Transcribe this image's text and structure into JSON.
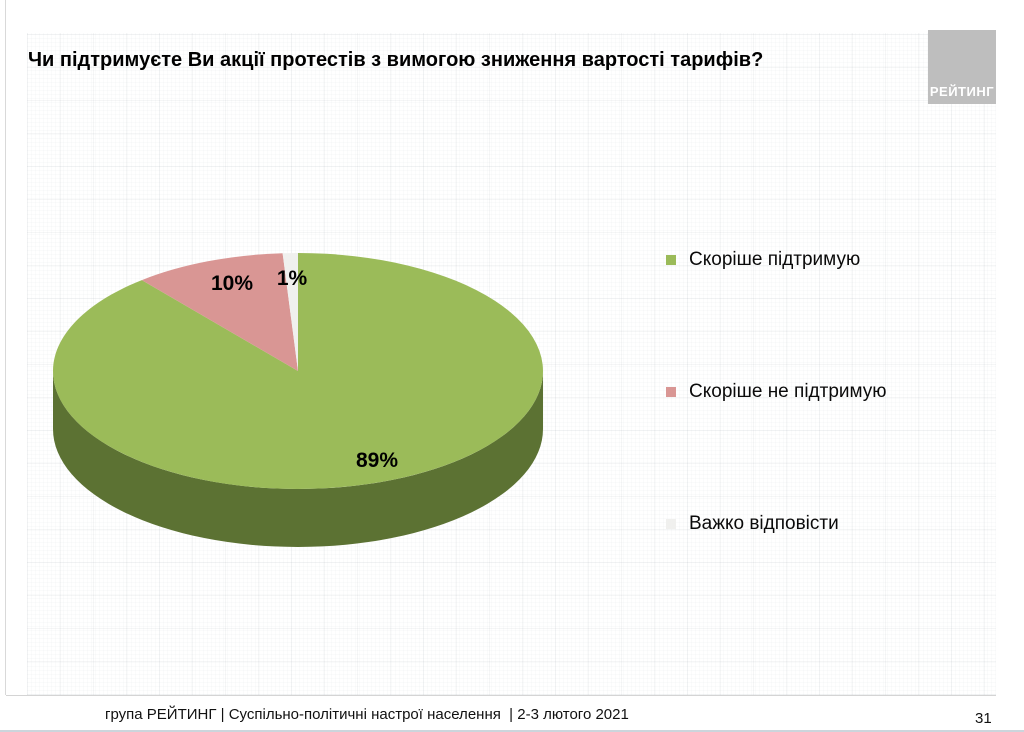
{
  "slide": {
    "title": "Чи підтримуєте Ви акції протестів з вимогою зниження вартості тарифів?",
    "logo_text": "РЕЙТИНГ",
    "footer": "група РЕЙТИНГ | Суспільно-політичні настрої населення  | 2-3 лютого 2021",
    "page_number": "31"
  },
  "chart_data": {
    "type": "pie",
    "style": "3d",
    "title": "Чи підтримуєте Ви акції протестів з вимогою зниження вартості тарифів?",
    "start_angle_deg": 0,
    "direction": "clockwise",
    "legend_position": "right",
    "categories": [
      "Скоріше підтримую",
      "Скоріше не підтримую",
      "Важко відповісти"
    ],
    "values": [
      89,
      10,
      1
    ],
    "slices": [
      {
        "label": "Скоріше підтримую",
        "value": 89,
        "pct_label": "89%",
        "color": "#9BBB59",
        "side_color": "#5C7233"
      },
      {
        "label": "Скоріше не підтримую",
        "value": 10,
        "pct_label": "10%",
        "color": "#D99694",
        "side_color": "#9D6B69"
      },
      {
        "label": "Важко відповісти",
        "value": 1,
        "pct_label": "1%",
        "color": "#F0F0EE",
        "side_color": "#C2C2C0"
      }
    ]
  }
}
